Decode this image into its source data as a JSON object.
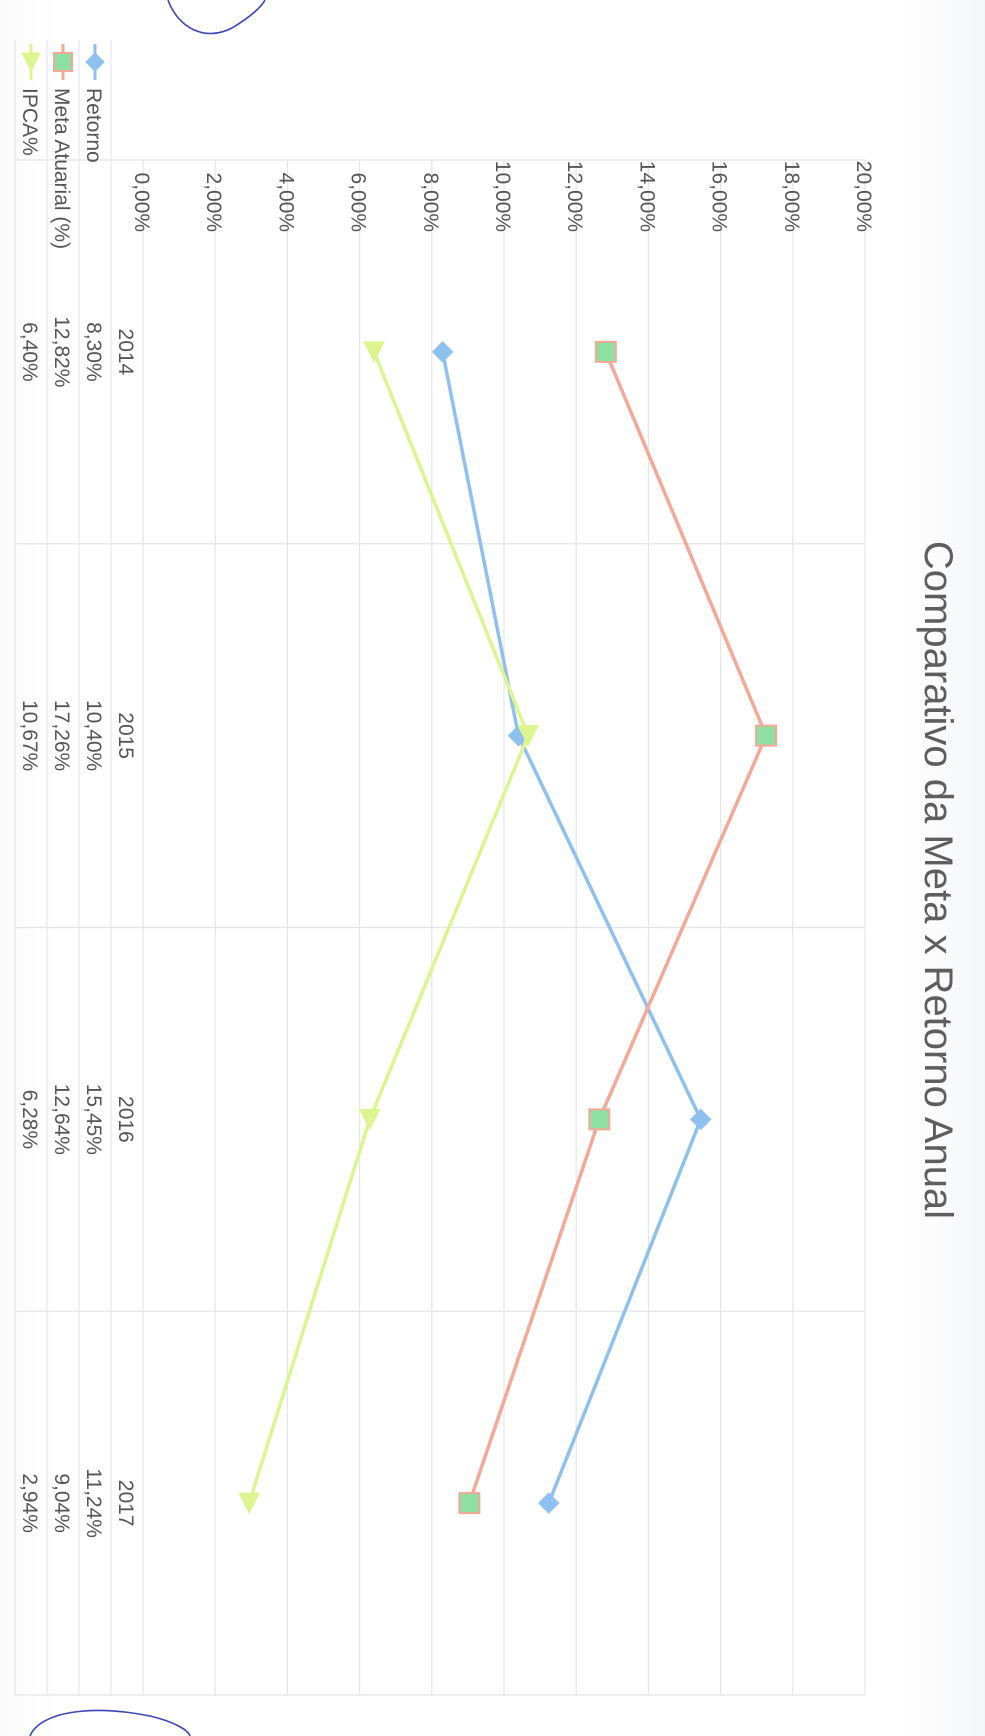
{
  "colors": {
    "retorno": "#8ec0f0",
    "meta": "#f4a896",
    "meta_marker": "#8ee0a2",
    "ipca": "#dcf58e",
    "grid": "#e4e4ec",
    "text": "#555555",
    "title": "#5e5e5e"
  },
  "chart_data": {
    "type": "line",
    "orientation": "rotated 90° clockwise",
    "title": "Comparativo da Meta x Retorno Anual",
    "categories": [
      "2014",
      "2015",
      "2016",
      "2017"
    ],
    "y_ticks": [
      "0,00%",
      "2,00%",
      "4,00%",
      "6,00%",
      "8,00%",
      "10,00%",
      "12,00%",
      "14,00%",
      "16,00%",
      "18,00%",
      "20,00%"
    ],
    "ylim": [
      0,
      20
    ],
    "grid": true,
    "legend": "data table below chart",
    "series": [
      {
        "name": "Retorno",
        "values": [
          8.3,
          10.4,
          15.45,
          11.24
        ],
        "labels": [
          "8,30%",
          "10,40%",
          "15,45%",
          "11,24%"
        ],
        "marker": "diamond",
        "color_key": "retorno"
      },
      {
        "name": "Meta Atuarial (%)",
        "values": [
          12.82,
          17.26,
          12.64,
          9.04
        ],
        "labels": [
          "12,82%",
          "17,26%",
          "12,64%",
          "9,04%"
        ],
        "marker": "square",
        "color_key": "meta"
      },
      {
        "name": "IPCA%",
        "values": [
          6.4,
          10.67,
          6.28,
          2.94
        ],
        "labels": [
          "6,40%",
          "10,67%",
          "6,28%",
          "2,94%"
        ],
        "marker": "triangle",
        "color_key": "ipca"
      }
    ]
  }
}
